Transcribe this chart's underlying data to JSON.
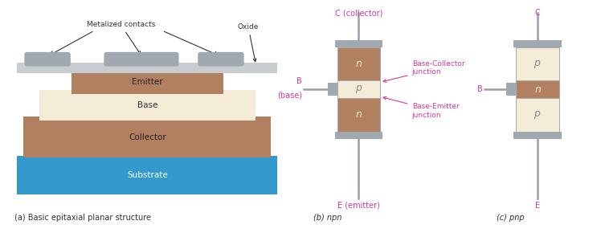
{
  "bg_color": "#ffffff",
  "substrate_color": "#3399cc",
  "collector_color": "#b08060",
  "base_color": "#f5ecd8",
  "emitter_color": "#b08060",
  "oxide_color": "#c8cdd2",
  "contact_color": "#a0a8b0",
  "n_region_color": "#b08060",
  "p_region_color": "#f5ecd8",
  "magenta": "#d4399a",
  "gray_lead": "#9aa0a8",
  "text_color": "#333333",
  "label_a": "(a) Basic epitaxial planar structure",
  "label_b": "(b) npn",
  "label_c": "(c) pnp"
}
